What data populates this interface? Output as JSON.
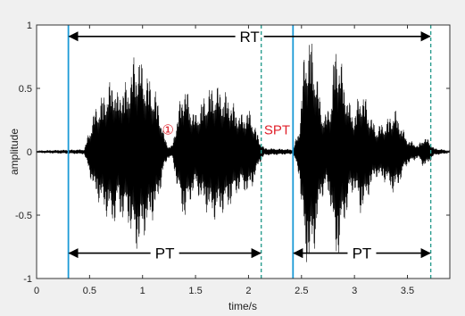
{
  "chart_data": {
    "type": "line",
    "title": "",
    "xlabel": "time/s",
    "ylabel": "amplitude",
    "xlim": [
      0,
      3.9
    ],
    "ylim": [
      -1,
      1
    ],
    "x_ticks": [
      0,
      0.5,
      1,
      1.5,
      2,
      2.5,
      3,
      3.5
    ],
    "x_tick_labels": [
      "0",
      "0.5",
      "1",
      "1.5",
      "2",
      "2.5",
      "3",
      "3.5"
    ],
    "y_ticks": [
      -1,
      -0.5,
      0,
      0.5,
      1
    ],
    "y_tick_labels": [
      "-1",
      "-0.5",
      "0",
      "0.5",
      "1"
    ],
    "grid": false,
    "series": [
      {
        "color": "#000000",
        "envelope": [
          [
            0.0,
            0.01
          ],
          [
            0.45,
            0.02
          ],
          [
            0.55,
            0.35
          ],
          [
            0.62,
            0.45
          ],
          [
            0.68,
            0.55
          ],
          [
            0.73,
            0.6
          ],
          [
            0.77,
            0.45
          ],
          [
            0.8,
            0.55
          ],
          [
            0.86,
            0.55
          ],
          [
            0.91,
            0.75
          ],
          [
            0.96,
            0.8
          ],
          [
            1.0,
            0.7
          ],
          [
            1.06,
            0.6
          ],
          [
            1.12,
            0.5
          ],
          [
            1.16,
            0.35
          ],
          [
            1.2,
            0.15
          ],
          [
            1.24,
            0.05
          ],
          [
            1.28,
            0.05
          ],
          [
            1.32,
            0.25
          ],
          [
            1.36,
            0.45
          ],
          [
            1.4,
            0.55
          ],
          [
            1.45,
            0.4
          ],
          [
            1.5,
            0.3
          ],
          [
            1.55,
            0.4
          ],
          [
            1.62,
            0.5
          ],
          [
            1.68,
            0.55
          ],
          [
            1.75,
            0.5
          ],
          [
            1.82,
            0.45
          ],
          [
            1.88,
            0.35
          ],
          [
            1.94,
            0.3
          ],
          [
            2.0,
            0.35
          ],
          [
            2.05,
            0.25
          ],
          [
            2.1,
            0.1
          ],
          [
            2.15,
            0.03
          ],
          [
            2.42,
            0.02
          ],
          [
            2.48,
            0.2
          ],
          [
            2.53,
            0.85
          ],
          [
            2.58,
            0.95
          ],
          [
            2.63,
            0.75
          ],
          [
            2.68,
            0.4
          ],
          [
            2.73,
            0.3
          ],
          [
            2.78,
            0.45
          ],
          [
            2.82,
            0.9
          ],
          [
            2.86,
            0.8
          ],
          [
            2.9,
            0.6
          ],
          [
            2.95,
            0.4
          ],
          [
            3.0,
            0.3
          ],
          [
            3.05,
            0.5
          ],
          [
            3.1,
            0.45
          ],
          [
            3.15,
            0.3
          ],
          [
            3.2,
            0.2
          ],
          [
            3.3,
            0.25
          ],
          [
            3.38,
            0.35
          ],
          [
            3.45,
            0.2
          ],
          [
            3.5,
            0.1
          ],
          [
            3.55,
            0.08
          ],
          [
            3.6,
            0.05
          ],
          [
            3.65,
            0.12
          ],
          [
            3.7,
            0.1
          ],
          [
            3.75,
            0.03
          ],
          [
            3.9,
            0.01
          ]
        ]
      }
    ],
    "vlines": [
      {
        "x": 0.3,
        "style": "solid",
        "color": "#1b9ad6"
      },
      {
        "x": 2.12,
        "style": "dashed",
        "color": "#2a9d8f"
      },
      {
        "x": 2.42,
        "style": "solid",
        "color": "#1b9ad6"
      },
      {
        "x": 3.72,
        "style": "dashed",
        "color": "#2a9d8f"
      }
    ],
    "annotations": [
      {
        "text": "RT",
        "type": "arrow",
        "x1": 0.3,
        "x2": 3.72,
        "y": 0.91,
        "color": "#000000"
      },
      {
        "text": "PT",
        "type": "arrow",
        "x1": 0.3,
        "x2": 2.12,
        "y": -0.8,
        "color": "#000000"
      },
      {
        "text": "PT",
        "type": "arrow",
        "x1": 2.42,
        "x2": 3.72,
        "y": -0.8,
        "color": "#000000"
      },
      {
        "text": "①",
        "type": "label",
        "x": 1.24,
        "y": 0.18,
        "color": "#e0202a"
      },
      {
        "text": "SPT",
        "type": "label",
        "x": 2.27,
        "y": 0.18,
        "color": "#e0202a"
      }
    ]
  }
}
